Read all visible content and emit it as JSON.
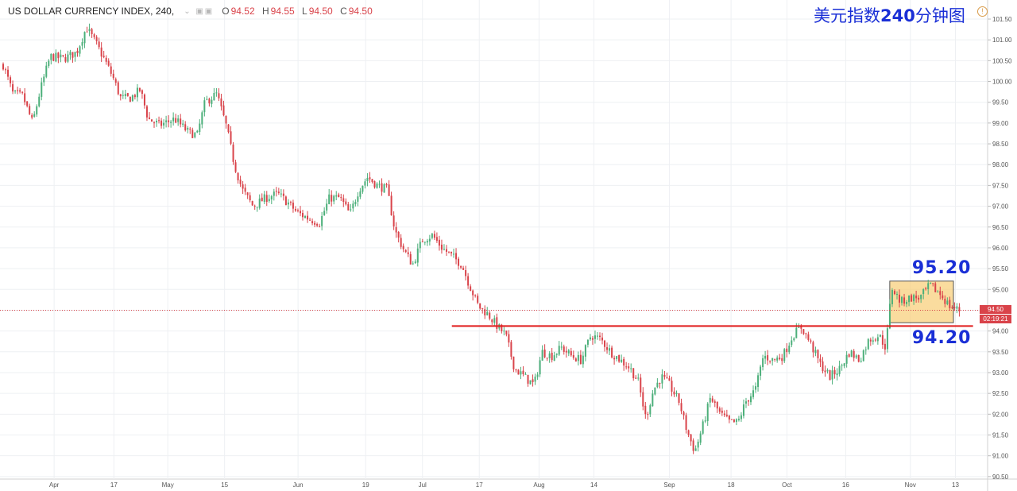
{
  "legend": {
    "symbol": "US DOLLAR CURRENCY INDEX, 240,",
    "o_label": "O",
    "o_value": "94.52",
    "h_label": "H",
    "h_value": "94.55",
    "l_label": "L",
    "l_value": "94.50",
    "c_label": "C",
    "c_value": "94.50"
  },
  "headline": {
    "prefix": "美元指数",
    "number": "240",
    "suffix": "分钟图"
  },
  "price_tag": {
    "last": "94.50",
    "countdown": "02:19:21"
  },
  "annotations": {
    "upper": "95.20",
    "lower": "94.20"
  },
  "colors": {
    "up": "#4caf7a",
    "down": "#d9434a",
    "support": "#e01b1b",
    "box_fill": "#f8c96a",
    "box_stroke": "#555555",
    "text_accent": "#1a2fd6"
  },
  "chart_data": {
    "type": "candlestick",
    "ylim": [
      90.5,
      101.5
    ],
    "yticks": [
      "101.50",
      "101.00",
      "100.50",
      "100.00",
      "99.50",
      "99.00",
      "98.50",
      "98.00",
      "97.50",
      "97.00",
      "96.50",
      "96.00",
      "95.50",
      "95.00",
      "94.50",
      "94.00",
      "93.50",
      "93.00",
      "92.50",
      "92.00",
      "91.50",
      "91.00",
      "90.50"
    ],
    "xticks": [
      {
        "label": "Apr",
        "t": 0.052
      },
      {
        "label": "17",
        "t": 0.113
      },
      {
        "label": "May",
        "t": 0.168
      },
      {
        "label": "15",
        "t": 0.226
      },
      {
        "label": "Jun",
        "t": 0.301
      },
      {
        "label": "19",
        "t": 0.37
      },
      {
        "label": "Jul",
        "t": 0.428
      },
      {
        "label": "17",
        "t": 0.486
      },
      {
        "label": "Aug",
        "t": 0.547
      },
      {
        "label": "14",
        "t": 0.603
      },
      {
        "label": "Sep",
        "t": 0.68
      },
      {
        "label": "18",
        "t": 0.743
      },
      {
        "label": "Oct",
        "t": 0.8
      },
      {
        "label": "16",
        "t": 0.86
      },
      {
        "label": "Nov",
        "t": 0.926
      },
      {
        "label": "13",
        "t": 0.972
      }
    ],
    "path": [
      [
        0.0,
        100.4
      ],
      [
        0.01,
        99.7
      ],
      [
        0.02,
        99.65
      ],
      [
        0.03,
        99.0
      ],
      [
        0.038,
        99.8
      ],
      [
        0.048,
        100.6
      ],
      [
        0.062,
        100.55
      ],
      [
        0.075,
        100.7
      ],
      [
        0.085,
        101.3
      ],
      [
        0.095,
        100.9
      ],
      [
        0.104,
        100.5
      ],
      [
        0.112,
        100.1
      ],
      [
        0.12,
        99.6
      ],
      [
        0.13,
        99.6
      ],
      [
        0.14,
        99.8
      ],
      [
        0.148,
        99.1
      ],
      [
        0.16,
        98.95
      ],
      [
        0.175,
        99.1
      ],
      [
        0.188,
        98.8
      ],
      [
        0.198,
        98.7
      ],
      [
        0.206,
        99.5
      ],
      [
        0.218,
        99.7
      ],
      [
        0.228,
        98.9
      ],
      [
        0.236,
        98.0
      ],
      [
        0.244,
        97.4
      ],
      [
        0.255,
        97.0
      ],
      [
        0.268,
        97.2
      ],
      [
        0.28,
        97.3
      ],
      [
        0.29,
        97.1
      ],
      [
        0.3,
        96.85
      ],
      [
        0.312,
        96.7
      ],
      [
        0.323,
        96.6
      ],
      [
        0.333,
        97.2
      ],
      [
        0.344,
        97.2
      ],
      [
        0.354,
        96.8
      ],
      [
        0.363,
        97.4
      ],
      [
        0.372,
        97.7
      ],
      [
        0.382,
        97.5
      ],
      [
        0.392,
        97.4
      ],
      [
        0.4,
        96.4
      ],
      [
        0.41,
        95.9
      ],
      [
        0.418,
        95.6
      ],
      [
        0.428,
        96.2
      ],
      [
        0.438,
        96.3
      ],
      [
        0.448,
        96.0
      ],
      [
        0.458,
        95.8
      ],
      [
        0.468,
        95.6
      ],
      [
        0.476,
        95.1
      ],
      [
        0.485,
        94.6
      ],
      [
        0.495,
        94.4
      ],
      [
        0.505,
        94.1
      ],
      [
        0.513,
        93.9
      ],
      [
        0.522,
        93.1
      ],
      [
        0.532,
        92.9
      ],
      [
        0.542,
        92.7
      ],
      [
        0.55,
        93.5
      ],
      [
        0.56,
        93.4
      ],
      [
        0.57,
        93.6
      ],
      [
        0.58,
        93.4
      ],
      [
        0.59,
        93.3
      ],
      [
        0.6,
        93.9
      ],
      [
        0.61,
        93.8
      ],
      [
        0.62,
        93.5
      ],
      [
        0.63,
        93.3
      ],
      [
        0.64,
        93.1
      ],
      [
        0.648,
        92.8
      ],
      [
        0.656,
        91.9
      ],
      [
        0.664,
        92.6
      ],
      [
        0.672,
        92.9
      ],
      [
        0.68,
        92.7
      ],
      [
        0.69,
        92.3
      ],
      [
        0.698,
        91.6
      ],
      [
        0.706,
        91.1
      ],
      [
        0.714,
        91.7
      ],
      [
        0.722,
        92.4
      ],
      [
        0.732,
        92.0
      ],
      [
        0.742,
        91.8
      ],
      [
        0.75,
        91.8
      ],
      [
        0.758,
        92.3
      ],
      [
        0.768,
        92.6
      ],
      [
        0.776,
        93.4
      ],
      [
        0.786,
        93.3
      ],
      [
        0.796,
        93.4
      ],
      [
        0.806,
        93.9
      ],
      [
        0.815,
        94.1
      ],
      [
        0.824,
        93.7
      ],
      [
        0.834,
        93.2
      ],
      [
        0.844,
        92.9
      ],
      [
        0.854,
        93.1
      ],
      [
        0.864,
        93.5
      ],
      [
        0.874,
        93.3
      ],
      [
        0.884,
        93.8
      ],
      [
        0.894,
        93.9
      ],
      [
        0.901,
        93.6
      ],
      [
        0.907,
        95.05
      ],
      [
        0.916,
        94.7
      ],
      [
        0.926,
        94.8
      ],
      [
        0.936,
        94.8
      ],
      [
        0.946,
        95.1
      ],
      [
        0.956,
        94.9
      ],
      [
        0.966,
        94.6
      ],
      [
        0.976,
        94.5
      ]
    ],
    "last_price": 94.5,
    "support_level": 94.12,
    "box": {
      "t_start": 0.905,
      "t_end": 0.97,
      "low": 94.2,
      "high": 95.2
    }
  }
}
